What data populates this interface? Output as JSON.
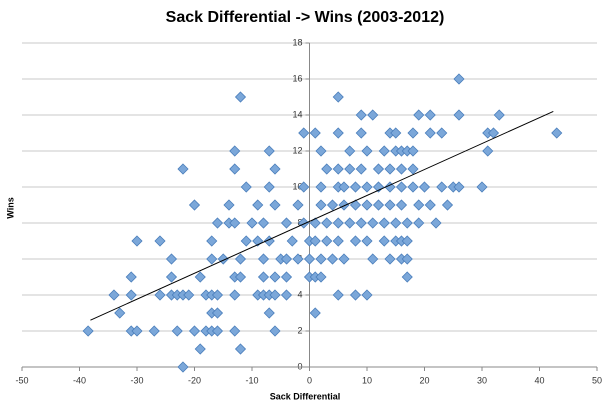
{
  "chart_data": {
    "type": "scatter",
    "title": "Sack Differential -> Wins (2003-2012)",
    "xlabel": "Sack Differential",
    "ylabel": "Wins",
    "color": "#7ba7d9",
    "x": [
      -22,
      -12,
      -19,
      -38.5,
      -31,
      -30,
      -27,
      -23,
      -20,
      -18,
      -17,
      -16,
      -13,
      -6,
      -33,
      -17,
      -16,
      -7,
      1,
      -34,
      -31,
      -26,
      -24,
      -23,
      -22,
      -21,
      -18,
      -17,
      -16,
      -13,
      -9,
      -8,
      -7,
      -6,
      -4,
      5,
      8,
      10,
      -31,
      -24,
      -19,
      -13,
      -12,
      -8,
      -6,
      -4,
      0,
      1,
      2,
      17,
      -24,
      -17,
      -15,
      -12,
      -8,
      -5,
      -4,
      -2,
      0,
      2,
      4,
      6,
      11,
      14,
      16,
      17,
      -30,
      -26,
      -17,
      -11,
      -9,
      -7,
      -3,
      0,
      1,
      3,
      5,
      8,
      10,
      13,
      15,
      16,
      17,
      -16,
      -14,
      -13,
      -10,
      -8,
      -4,
      -1,
      1,
      3,
      5,
      7,
      9,
      11,
      13,
      15,
      17,
      19,
      22,
      -20,
      -14,
      -9,
      -6,
      -2,
      2,
      4,
      6,
      8,
      10,
      12,
      14,
      16,
      19,
      21,
      24,
      -11,
      -7,
      -1,
      2,
      5,
      6,
      8,
      10,
      12,
      14,
      16,
      18,
      20,
      23,
      25,
      26,
      30,
      -22,
      -13,
      -6,
      3,
      5,
      7,
      9,
      12,
      14,
      16,
      18,
      -13,
      -7,
      2,
      7,
      10,
      13,
      15,
      16,
      17,
      18,
      31,
      -1,
      1,
      5,
      9,
      14,
      15,
      18,
      21,
      23,
      31,
      32,
      43,
      9,
      11,
      19,
      21,
      26,
      33,
      -12,
      5,
      26
    ],
    "values": [
      0,
      1,
      1,
      2,
      2,
      2,
      2,
      2,
      2,
      2,
      2,
      2,
      2,
      2,
      3,
      3,
      3,
      3,
      3,
      4,
      4,
      4,
      4,
      4,
      4,
      4,
      4,
      4,
      4,
      4,
      4,
      4,
      4,
      4,
      4,
      4,
      4,
      4,
      5,
      5,
      5,
      5,
      5,
      5,
      5,
      5,
      5,
      5,
      5,
      5,
      6,
      6,
      6,
      6,
      6,
      6,
      6,
      6,
      6,
      6,
      6,
      6,
      6,
      6,
      6,
      6,
      7,
      7,
      7,
      7,
      7,
      7,
      7,
      7,
      7,
      7,
      7,
      7,
      7,
      7,
      7,
      7,
      7,
      8,
      8,
      8,
      8,
      8,
      8,
      8,
      8,
      8,
      8,
      8,
      8,
      8,
      8,
      8,
      8,
      8,
      8,
      9,
      9,
      9,
      9,
      9,
      9,
      9,
      9,
      9,
      9,
      9,
      9,
      9,
      9,
      9,
      9,
      10,
      10,
      10,
      10,
      10,
      10,
      10,
      10,
      10,
      10,
      10,
      10,
      10,
      10,
      10,
      10,
      10,
      11,
      11,
      11,
      11,
      11,
      11,
      11,
      11,
      11,
      11,
      11,
      12,
      12,
      12,
      12,
      12,
      12,
      12,
      12,
      12,
      12,
      12,
      13,
      13,
      13,
      13,
      13,
      13,
      13,
      13,
      13,
      13,
      13,
      13,
      14,
      14,
      14,
      14,
      14,
      14,
      15,
      15,
      16
    ],
    "trendline": {
      "x": [
        -38.1,
        42.4
      ],
      "values": [
        2.6,
        14.2
      ],
      "color": "#000000"
    },
    "xlim": [
      -50,
      50
    ],
    "xticks": [
      -50,
      -40,
      -30,
      -20,
      -10,
      0,
      10,
      20,
      30,
      40,
      50
    ],
    "ylim": [
      0,
      18
    ],
    "yticks": [
      0,
      2,
      4,
      6,
      8,
      10,
      12,
      14,
      16,
      18
    ],
    "grid": true
  }
}
